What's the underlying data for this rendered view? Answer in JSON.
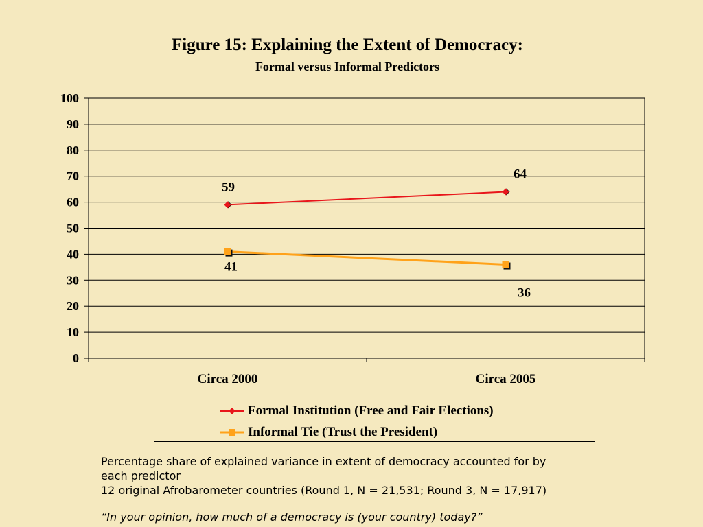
{
  "title": "Figure 15:  Explaining the Extent of Democracy:",
  "subtitle": "Formal versus Informal Predictors",
  "chart_data": {
    "type": "line",
    "categories": [
      "Circa 2000",
      "Circa 2005"
    ],
    "series": [
      {
        "name": "Formal Institution (Free and Fair Elections)",
        "values": [
          59,
          64
        ],
        "color": "#e8161b",
        "marker": "diamond"
      },
      {
        "name": "Informal Tie (Trust the President)",
        "values": [
          41,
          36
        ],
        "color": "#ffa21a",
        "marker": "square"
      }
    ],
    "ylim": [
      0,
      100
    ],
    "yticks": [
      0,
      10,
      20,
      30,
      40,
      50,
      60,
      70,
      80,
      90,
      100
    ],
    "grid": true,
    "legend": "bottom"
  },
  "notes": {
    "line1": "Percentage share of explained variance in extent of democracy accounted for by",
    "line2": "each predictor",
    "line3": "12 original Afrobarometer countries (Round 1, N = 21,531;  Round 3, N = 17,917)",
    "question": "“In your opinion, how much of a democracy is (your country) today?”"
  }
}
